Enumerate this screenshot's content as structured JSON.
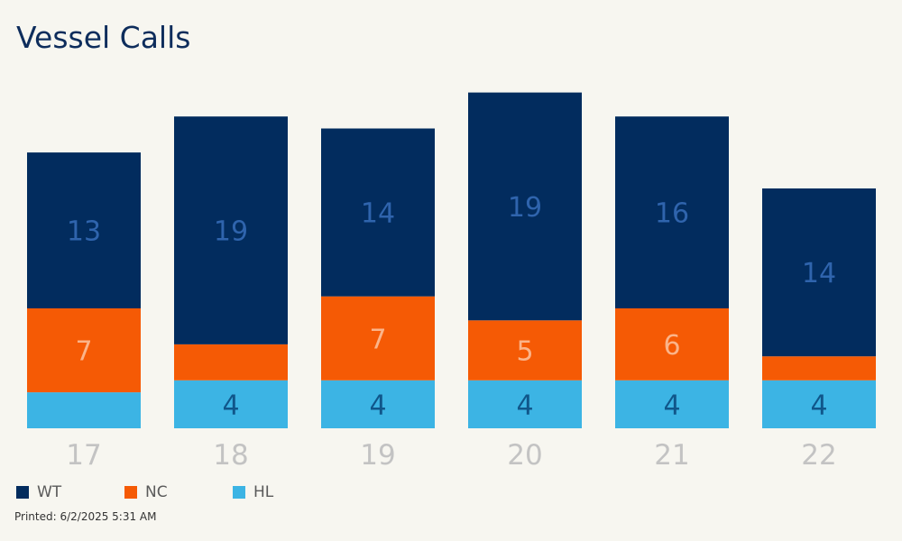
{
  "title": "Vessel Calls",
  "printed": "Printed: 6/2/2025 5:31 AM",
  "colors": {
    "WT": "#022c5e",
    "NC": "#f55a05",
    "HL": "#3cb4e4",
    "WT_label": "#2f64ad",
    "NC_label": "#fbb48a",
    "HL_label": "#10568a",
    "tick": "#c3c3c3"
  },
  "legend": [
    {
      "name": "WT",
      "color": "#022c5e"
    },
    {
      "name": "NC",
      "color": "#f55a05"
    },
    {
      "name": "HL",
      "color": "#3cb4e4"
    }
  ],
  "chart_data": {
    "type": "bar",
    "stacked": true,
    "categories": [
      "17",
      "18",
      "19",
      "20",
      "21",
      "22"
    ],
    "series": [
      {
        "name": "HL",
        "values": [
          3,
          4,
          4,
          4,
          4,
          4
        ],
        "labels": [
          "",
          "4",
          "4",
          "4",
          "4",
          "4"
        ]
      },
      {
        "name": "NC",
        "values": [
          7,
          3,
          7,
          5,
          6,
          2
        ],
        "labels": [
          "7",
          "",
          "7",
          "5",
          "6",
          ""
        ]
      },
      {
        "name": "WT",
        "values": [
          13,
          19,
          14,
          19,
          16,
          14
        ],
        "labels": [
          "13",
          "19",
          "14",
          "19",
          "16",
          "14"
        ]
      }
    ],
    "ylim": [
      0,
      28
    ],
    "grid": false,
    "legend_position": "bottom-left"
  }
}
